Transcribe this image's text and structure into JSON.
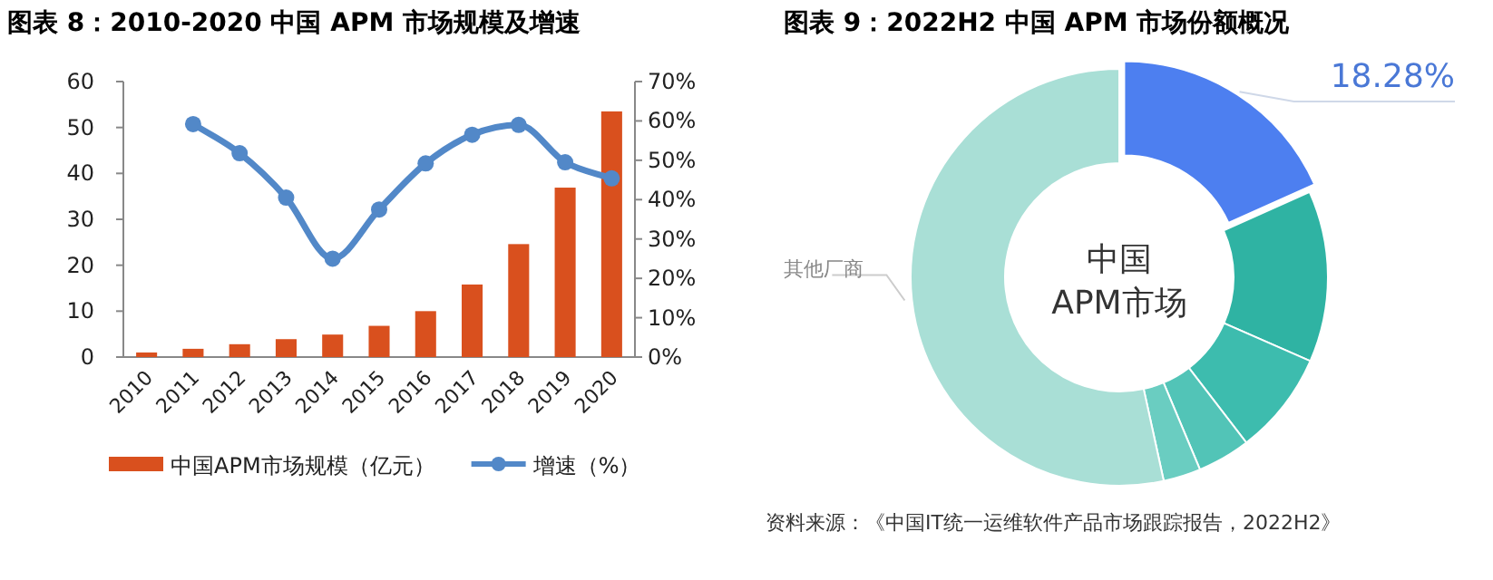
{
  "chart_data": [
    {
      "type": "bar",
      "title": "图表 8：2010-2020 中国 APM 市场规模及增速",
      "categories": [
        "2010",
        "2011",
        "2012",
        "2013",
        "2014",
        "2015",
        "2016",
        "2017",
        "2018",
        "2019",
        "2020"
      ],
      "series": [
        {
          "name": "中国APM市场规模（亿元）",
          "type": "bar",
          "color": "#d9501e",
          "values": [
            1,
            1.8,
            2.8,
            3.9,
            4.9,
            6.8,
            10,
            15.8,
            24.6,
            36.9,
            53.5
          ]
        },
        {
          "name": "增速（%）",
          "type": "line",
          "axis": "y2",
          "color": "#5288c8",
          "marker": "circle",
          "values": [
            null,
            59.2,
            51.8,
            40.5,
            25,
            37.5,
            49.2,
            56.5,
            59,
            49.5,
            45.4
          ]
        }
      ],
      "ylim": [
        0,
        60
      ],
      "yticks": [
        0,
        10,
        20,
        30,
        40,
        50,
        60
      ],
      "y2lim": [
        0,
        70
      ],
      "y2ticks": [
        {
          "value": 0,
          "label": "0%"
        },
        {
          "value": 10,
          "label": "10%"
        },
        {
          "value": 20,
          "label": "20%"
        },
        {
          "value": 30,
          "label": "30%"
        },
        {
          "value": 40,
          "label": "40%"
        },
        {
          "value": 50,
          "label": "50%"
        },
        {
          "value": 60,
          "label": "60%"
        },
        {
          "value": 70,
          "label": "70%"
        }
      ],
      "legend": "bottom",
      "grid": false
    },
    {
      "type": "donut",
      "title": "图表 9：2022H2 中国 APM 市场份额概况",
      "categories": [
        null,
        null,
        null,
        null,
        null,
        "其他厂商"
      ],
      "values": [
        18.28,
        13.3,
        8.0,
        4.1,
        2.9,
        53.42
      ],
      "colors": [
        "#4d7ff0",
        "#2fb3a3",
        "#3dbcae",
        "#52c4b7",
        "#6acdc1",
        "#a9dfd6"
      ],
      "value_labels": [
        "18.28%",
        null,
        null,
        null,
        null,
        null
      ],
      "annotations": [
        "中国\nAPM市场",
        "资料来源：《中国IT统一运维软件产品市场跟踪报告，2022H2》"
      ]
    }
  ]
}
